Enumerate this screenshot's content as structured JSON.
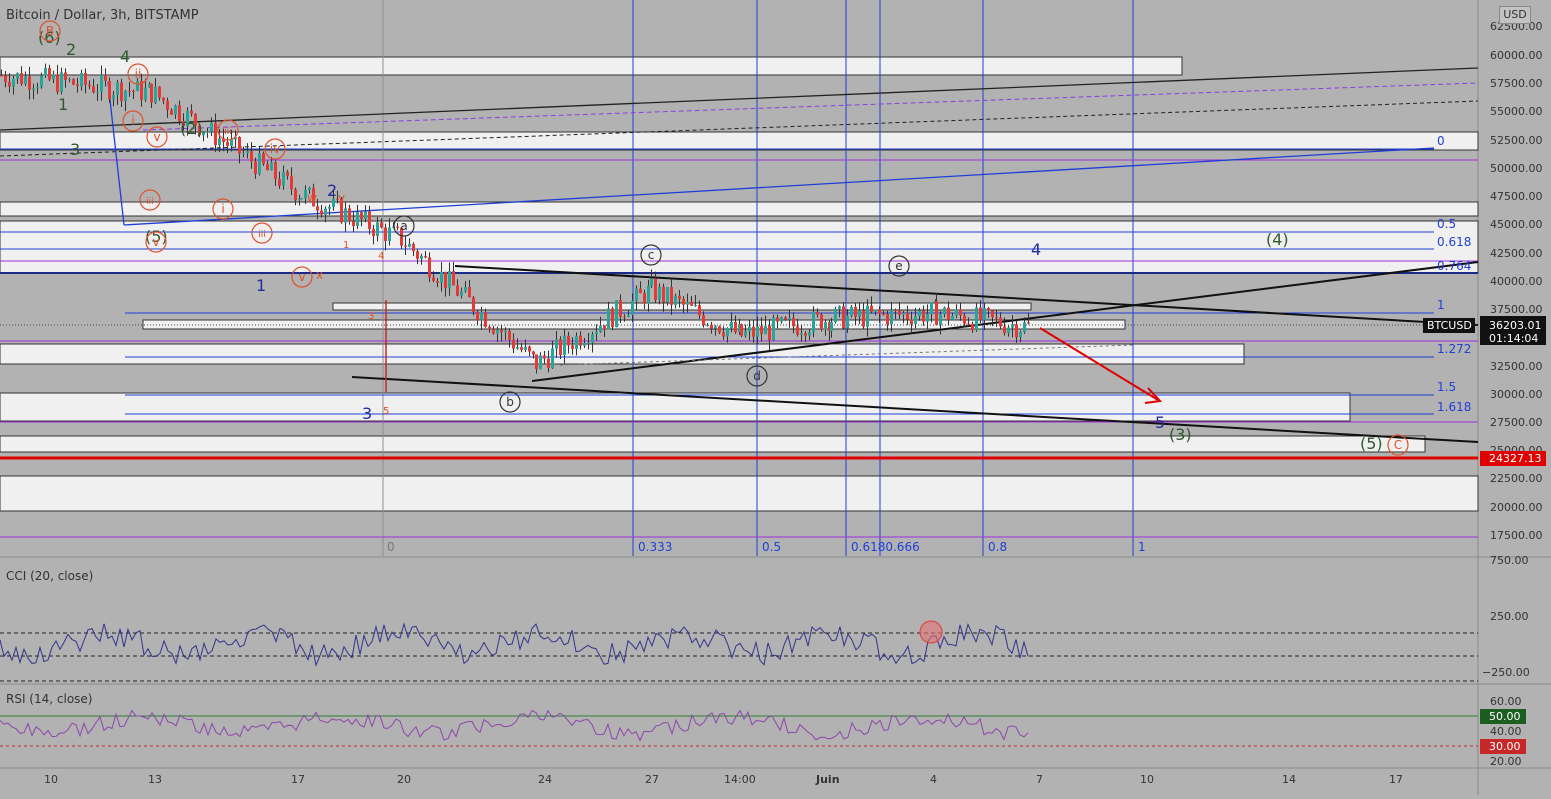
{
  "title": "Bitcoin / Dollar, 3h, BITSTAMP",
  "currency": "USD",
  "cci_label": "CCI (20, close)",
  "rsi_label": "RSI (14, close)",
  "price_axis_ticks": [
    "62500.00",
    "60000.00",
    "57500.00",
    "55000.00",
    "52500.00",
    "50000.00",
    "47500.00",
    "45000.00",
    "42500.00",
    "40000.00",
    "37500.00",
    "35000.00",
    "32500.00",
    "30000.00",
    "27500.00",
    "25000.00",
    "22500.00",
    "20000.00",
    "17500.00"
  ],
  "cci_ticks": [
    "750.00",
    "250.00",
    "−250.00"
  ],
  "rsi_ticks": [
    "60.00",
    "40.00",
    "20.00"
  ],
  "x_ticks": [
    "10",
    "13",
    "17",
    "20",
    "24",
    "27",
    "14:00",
    "Juin",
    "4",
    "7",
    "10",
    "14",
    "17"
  ],
  "symbol_tag": "BTCUSD",
  "last_price": "36203.01",
  "countdown": "01:14:04",
  "support_price": "24327.13",
  "rsi_level_50": "50.00",
  "rsi_level_30": "30.00",
  "fib_retracement_labels": [
    "0",
    "0.5",
    "0.618",
    "0.764",
    "1",
    "1.272",
    "1.5",
    "1.618"
  ],
  "fib_time_labels": [
    "0",
    "0.333",
    "0.5",
    "0.6180.666",
    "0.8",
    "1"
  ],
  "chart_data": {
    "type": "line",
    "title": "Bitcoin / Dollar, 3h, BITSTAMP",
    "xlabel": "",
    "ylabel": "",
    "ylim": [
      16000,
      64000
    ],
    "x": [
      "10",
      "13",
      "17",
      "20",
      "24",
      "27",
      "14:00",
      "Juin",
      "4",
      "7"
    ],
    "series": [
      {
        "values": [
          58500,
          57000,
          48000,
          44000,
          33000,
          39500,
          35500,
          37000,
          37500,
          36203
        ]
      }
    ],
    "last_price": 36203.01,
    "support_line": 24327.13,
    "rsi_levels": [
      50,
      30
    ],
    "grid": false
  },
  "colors": {
    "background": "#b2b2b2",
    "candle_up": "#26a69a",
    "candle_down": "#e53935",
    "support": "#e00000",
    "fib": "#1f3fd6",
    "indicator": "#33338c",
    "rsi_line": "#8e44ad"
  }
}
